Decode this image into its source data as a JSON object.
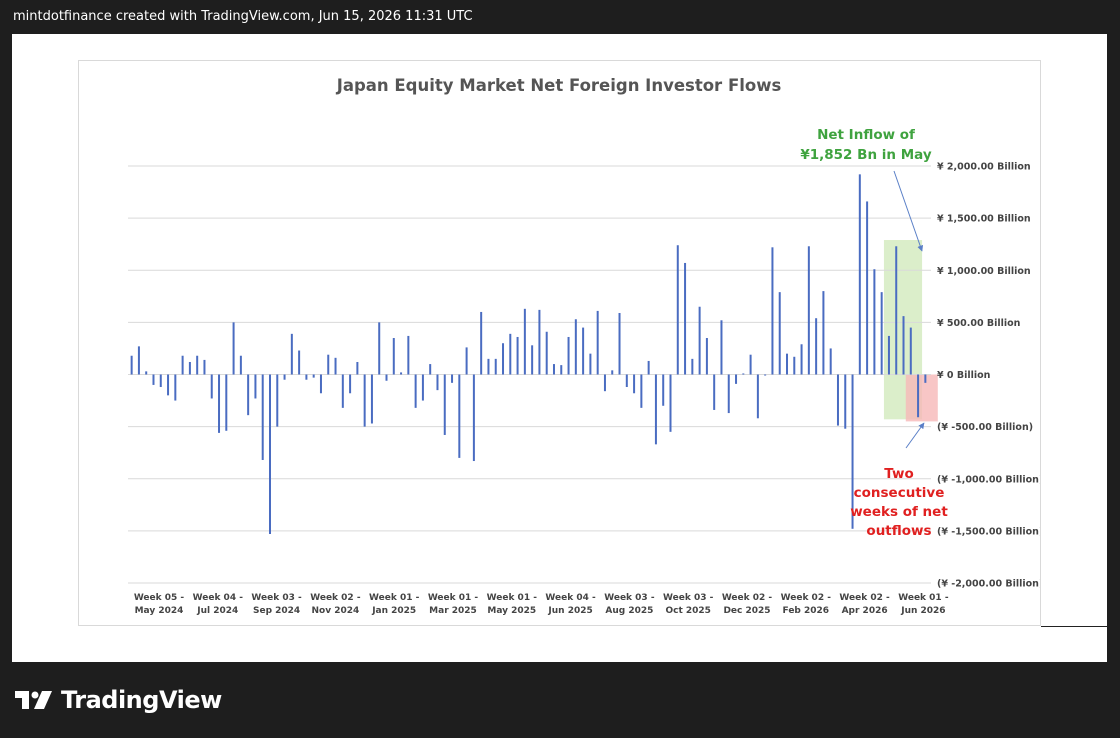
{
  "header": {
    "attribution": "mintdotfinance created with TradingView.com, Jun 15, 2026 11:31 UTC"
  },
  "branding": {
    "logo_text": "TradingView",
    "logo_icon": "tradingview-logo-icon"
  },
  "colors": {
    "bar": "#4a6cc1",
    "grid": "#d9d9d9",
    "title": "#555555",
    "axis_text": "#444444",
    "inflow": "#3fa33f",
    "outflow": "#e02020",
    "highlight_green": "#cfe8b8",
    "highlight_red": "#f6b8b8"
  },
  "chart_data": {
    "type": "bar",
    "title": "Japan Equity Market Net Foreign Investor Flows",
    "y_axis_position": "right",
    "ylim": [
      -2000,
      2000
    ],
    "y_ticks": [
      2000,
      1500,
      1000,
      500,
      0,
      -500,
      -1000,
      -1500,
      -2000
    ],
    "y_tick_labels": [
      "¥ 2,000.00 Billion",
      "¥ 1,500.00 Billion",
      "¥ 1,000.00 Billion",
      "¥ 500.00 Billion",
      "¥ 0 Billion",
      "(¥ -500.00 Billion)",
      "(¥ -1,000.00 Billion)",
      "(¥ -1,500.00 Billion)",
      "(¥ -2,000.00 Billion)"
    ],
    "x_tick_labels": [
      [
        "Week 05 -",
        "May 2024"
      ],
      [
        "Week 04 -",
        "Jul 2024"
      ],
      [
        "Week 03 -",
        "Sep 2024"
      ],
      [
        "Week 02 -",
        "Nov 2024"
      ],
      [
        "Week 01 -",
        "Jan 2025"
      ],
      [
        "Week 01 -",
        "Mar 2025"
      ],
      [
        "Week 01 -",
        "May 2025"
      ],
      [
        "Week 04 -",
        "Jun 2025"
      ],
      [
        "Week 03 -",
        "Aug 2025"
      ],
      [
        "Week 03 -",
        "Oct 2025"
      ],
      [
        "Week 02 -",
        "Dec 2025"
      ],
      [
        "Week 02 -",
        "Feb 2026"
      ],
      [
        "Week 02 -",
        "Apr 2026"
      ],
      [
        "Week 01 -",
        "Jun 2026"
      ]
    ],
    "grid": true,
    "legend": "none",
    "values": [
      180,
      270,
      30,
      -100,
      -120,
      -200,
      -250,
      180,
      120,
      180,
      140,
      -230,
      -560,
      -540,
      500,
      180,
      -390,
      -230,
      -820,
      -1530,
      -500,
      -50,
      390,
      230,
      -50,
      -30,
      -180,
      190,
      160,
      -320,
      -180,
      120,
      -500,
      -470,
      500,
      -60,
      350,
      20,
      370,
      -320,
      -250,
      100,
      -150,
      -580,
      -80,
      -800,
      260,
      -830,
      600,
      150,
      150,
      300,
      390,
      360,
      630,
      280,
      620,
      410,
      100,
      90,
      360,
      530,
      450,
      200,
      610,
      -160,
      40,
      590,
      -120,
      -180,
      -320,
      130,
      -670,
      -300,
      -550,
      1240,
      1070,
      150,
      650,
      350,
      -340,
      520,
      -370,
      -90,
      10,
      190,
      -420,
      -10,
      1220,
      790,
      200,
      170,
      290,
      1230,
      540,
      800,
      250,
      -490,
      -520,
      -1480,
      1920,
      1660,
      1010,
      790,
      370,
      1230,
      560,
      450,
      -410,
      -80
    ],
    "annotations": [
      {
        "text_lines": [
          "Net Inflow of",
          "¥1,852 Bn in May"
        ],
        "color": "#3fa33f"
      },
      {
        "text_lines": [
          "Two",
          "consecutive",
          "weeks of net",
          "outflows"
        ],
        "color": "#e02020"
      }
    ]
  }
}
